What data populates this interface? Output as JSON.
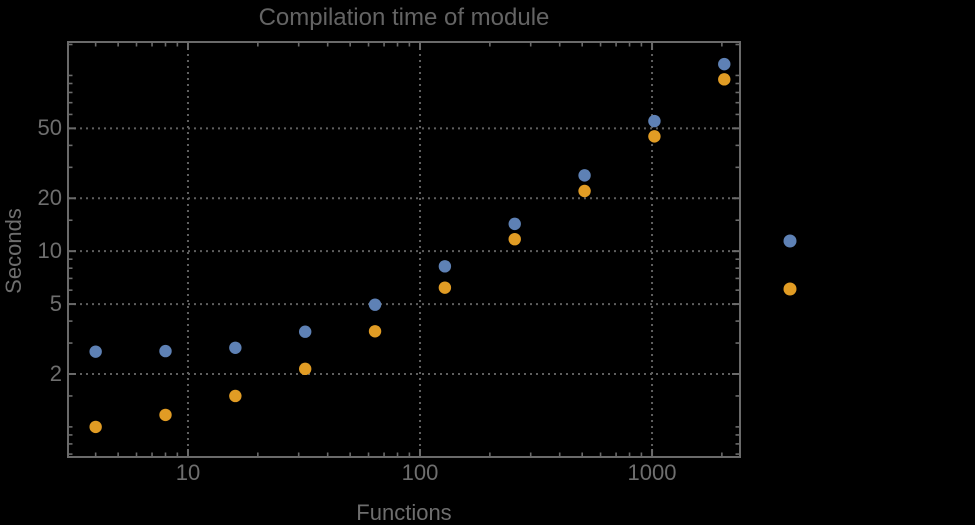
{
  "page": {
    "background": "#000000"
  },
  "chart_data": {
    "type": "scatter",
    "title": "Compilation time of module",
    "xlabel": "Functions",
    "ylabel": "Seconds",
    "x_scale": "log",
    "y_scale": "log",
    "grid": "dotted",
    "x_range": [
      3.04,
      2394
    ],
    "y_range": [
      0.674,
      155
    ],
    "x": [
      4,
      8,
      16,
      32,
      64,
      128,
      256,
      512,
      1024,
      2048
    ],
    "series": [
      {
        "name": "series-1",
        "color": "#5E81B5",
        "values": [
          2.68,
          2.7,
          2.82,
          3.48,
          4.96,
          8.2,
          14.3,
          27,
          55,
          116
        ]
      },
      {
        "name": "series-2",
        "color": "#E19C24",
        "values": [
          1.0,
          1.17,
          1.5,
          2.14,
          3.5,
          6.2,
          11.7,
          22,
          45,
          95
        ]
      }
    ],
    "x_ticks": {
      "major_values": [
        10,
        100,
        1000
      ],
      "major_labels": [
        "10",
        "100",
        "1000"
      ],
      "minor_values": [
        4,
        5,
        6,
        7,
        8,
        9,
        20,
        30,
        40,
        50,
        60,
        70,
        80,
        90,
        200,
        300,
        400,
        500,
        600,
        700,
        800,
        900,
        2000
      ]
    },
    "y_ticks": {
      "major_values": [
        2,
        5,
        10,
        20,
        50
      ],
      "major_labels": [
        "2",
        "5",
        "10",
        "20",
        "50"
      ],
      "minor_values": [
        0.7,
        0.8,
        0.9,
        1,
        1.5,
        3,
        4,
        6,
        7,
        8,
        9,
        15,
        30,
        40,
        60,
        70,
        80,
        90,
        100,
        150
      ]
    },
    "legend": {
      "labels_visible": false,
      "markers": [
        {
          "name": "legend-marker-series-1",
          "color": "#5E81B5"
        },
        {
          "name": "legend-marker-series-2",
          "color": "#E19C24"
        }
      ]
    },
    "colors": {
      "frame": "#6a6a6a",
      "grid": "#5f5f5f",
      "title_text": "#646464",
      "label_text": "#6e6e6e"
    }
  }
}
